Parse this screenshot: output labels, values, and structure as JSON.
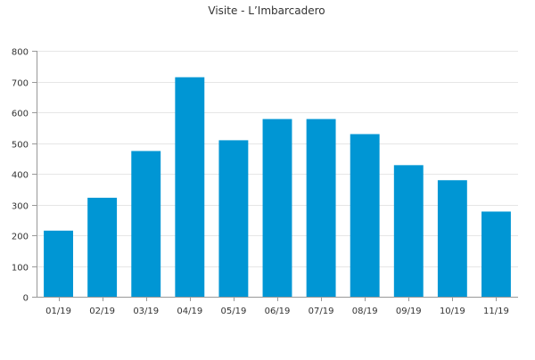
{
  "chart_data": {
    "type": "bar",
    "title": "Visite - L’Imbarcadero",
    "xlabel": "",
    "ylabel": "",
    "categories": [
      "01/19",
      "02/19",
      "03/19",
      "04/19",
      "05/19",
      "06/19",
      "07/19",
      "08/19",
      "09/19",
      "10/19",
      "11/19"
    ],
    "values": [
      215,
      322,
      474,
      714,
      509,
      578,
      578,
      529,
      428,
      379,
      277
    ],
    "ylim": [
      0,
      800
    ],
    "yticks": [
      0,
      100,
      200,
      300,
      400,
      500,
      600,
      700,
      800
    ],
    "grid": true,
    "legend": "none",
    "colors": {
      "bar": "#0096d4",
      "grid": "#e6e6e6",
      "axis": "#999999",
      "text": "#333333"
    }
  }
}
